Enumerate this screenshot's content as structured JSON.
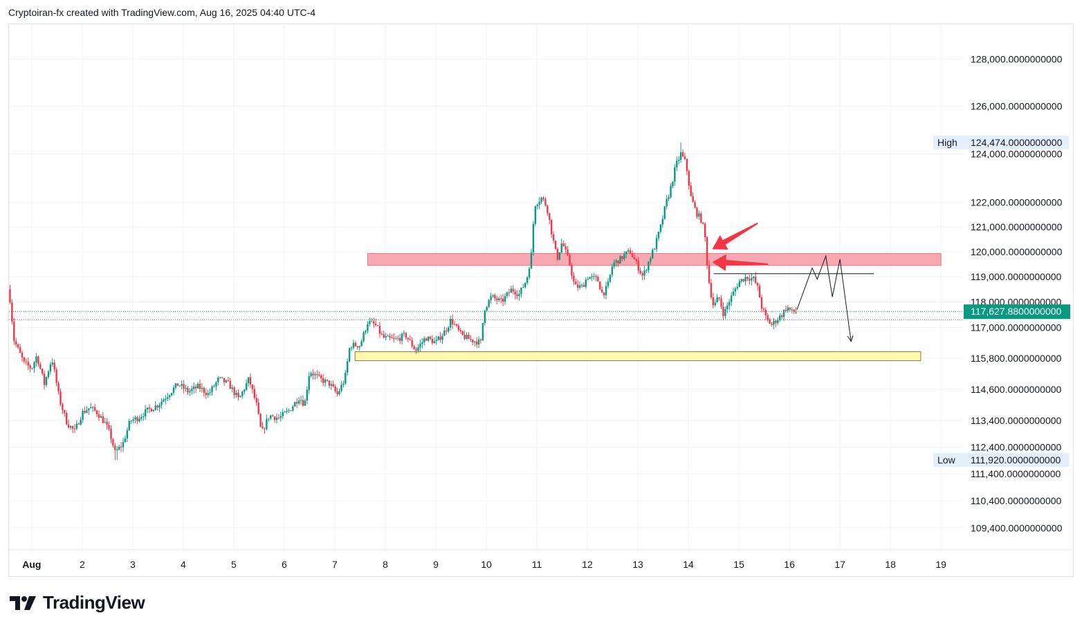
{
  "header": {
    "text": "Cryptoiran-fx created with TradingView.com, Aug 16, 2025 04:40 UTC-4"
  },
  "brand": {
    "name": "TradingView"
  },
  "colors": {
    "up": "#089981",
    "down": "#f23645",
    "resistance_zone": "#f7a8b0",
    "support_zone": "#fdf5b0",
    "current_price": "#089981"
  },
  "chart_data": {
    "type": "candlestick",
    "title": "",
    "y_scale": "log",
    "ylim": [
      108600,
      129500
    ],
    "xlim": [
      0.55,
      19.45
    ],
    "y_ticks": [
      {
        "value": 128000,
        "label": "128,000.0000000000"
      },
      {
        "value": 126000,
        "label": "126,000.0000000000"
      },
      {
        "value": 124000,
        "label": "124,000.0000000000"
      },
      {
        "value": 122000,
        "label": "122,000.0000000000"
      },
      {
        "value": 121000,
        "label": "121,000.0000000000"
      },
      {
        "value": 120000,
        "label": "120,000.0000000000"
      },
      {
        "value": 119000,
        "label": "119,000.0000000000"
      },
      {
        "value": 118000,
        "label": "118,000.0000000000"
      },
      {
        "value": 117000,
        "label": "117,000.0000000000"
      },
      {
        "value": 115800,
        "label": "115,800.0000000000"
      },
      {
        "value": 114600,
        "label": "114,600.0000000000"
      },
      {
        "value": 113400,
        "label": "113,400.0000000000"
      },
      {
        "value": 112400,
        "label": "112,400.0000000000"
      },
      {
        "value": 111400,
        "label": "111,400.0000000000"
      },
      {
        "value": 110400,
        "label": "110,400.0000000000"
      },
      {
        "value": 109400,
        "label": "109,400.0000000000"
      }
    ],
    "x_ticks": [
      {
        "value": 1,
        "label": "Aug"
      },
      {
        "value": 2,
        "label": "2"
      },
      {
        "value": 3,
        "label": "3"
      },
      {
        "value": 4,
        "label": "4"
      },
      {
        "value": 5,
        "label": "5"
      },
      {
        "value": 6,
        "label": "6"
      },
      {
        "value": 7,
        "label": "7"
      },
      {
        "value": 8,
        "label": "8"
      },
      {
        "value": 9,
        "label": "9"
      },
      {
        "value": 10,
        "label": "10"
      },
      {
        "value": 11,
        "label": "11"
      },
      {
        "value": 12,
        "label": "12"
      },
      {
        "value": 13,
        "label": "13"
      },
      {
        "value": 14,
        "label": "14"
      },
      {
        "value": 15,
        "label": "15"
      },
      {
        "value": 16,
        "label": "16"
      },
      {
        "value": 17,
        "label": "17"
      },
      {
        "value": 18,
        "label": "18"
      },
      {
        "value": 19,
        "label": "19"
      }
    ],
    "high_marker": {
      "label": "High",
      "value": 124474,
      "value_label": "124,474.0000000000"
    },
    "low_marker": {
      "label": "Low",
      "value": 111920,
      "value_label": "111,920.0000000000"
    },
    "current_price": {
      "value": 117627.88,
      "label": "117,627.8800000000"
    },
    "prev_close_value": 117300,
    "resistance_zone": {
      "x_start": 7.65,
      "x_end": 19.0,
      "y_low": 119450,
      "y_high": 119930
    },
    "support_zone": {
      "x_start": 7.4,
      "x_end": 18.6,
      "y_low": 115700,
      "y_high": 116050
    },
    "horizontal_line": {
      "x_start": 14.5,
      "x_end": 17.67,
      "value": 119120
    },
    "projection_path": [
      {
        "x": 16.15,
        "y": 117700
      },
      {
        "x": 16.45,
        "y": 119350
      },
      {
        "x": 16.55,
        "y": 118900
      },
      {
        "x": 16.72,
        "y": 119830
      },
      {
        "x": 16.85,
        "y": 118200
      },
      {
        "x": 17.0,
        "y": 119700
      },
      {
        "x": 17.22,
        "y": 116450
      }
    ],
    "arrows": [
      {
        "from_x": 15.37,
        "from_y": 121150,
        "to_x": 14.47,
        "to_y": 120100
      },
      {
        "from_x": 15.58,
        "from_y": 119500,
        "to_x": 14.47,
        "to_y": 119580
      }
    ],
    "price_path": [
      {
        "x": 0.55,
        "y": 118500
      },
      {
        "x": 0.65,
        "y": 116500
      },
      {
        "x": 0.85,
        "y": 115600
      },
      {
        "x": 1.0,
        "y": 115400
      },
      {
        "x": 1.1,
        "y": 115900
      },
      {
        "x": 1.25,
        "y": 114800
      },
      {
        "x": 1.4,
        "y": 115800
      },
      {
        "x": 1.55,
        "y": 114200
      },
      {
        "x": 1.7,
        "y": 113300
      },
      {
        "x": 1.85,
        "y": 113000
      },
      {
        "x": 2.0,
        "y": 113700
      },
      {
        "x": 2.15,
        "y": 113900
      },
      {
        "x": 2.3,
        "y": 113700
      },
      {
        "x": 2.45,
        "y": 113300
      },
      {
        "x": 2.55,
        "y": 112900
      },
      {
        "x": 2.65,
        "y": 112200
      },
      {
        "x": 2.8,
        "y": 112500
      },
      {
        "x": 2.95,
        "y": 113400
      },
      {
        "x": 3.1,
        "y": 113500
      },
      {
        "x": 3.3,
        "y": 113800
      },
      {
        "x": 3.5,
        "y": 114000
      },
      {
        "x": 3.7,
        "y": 114400
      },
      {
        "x": 3.9,
        "y": 114800
      },
      {
        "x": 4.1,
        "y": 114500
      },
      {
        "x": 4.3,
        "y": 114700
      },
      {
        "x": 4.5,
        "y": 114400
      },
      {
        "x": 4.7,
        "y": 115000
      },
      {
        "x": 4.9,
        "y": 114800
      },
      {
        "x": 5.1,
        "y": 114200
      },
      {
        "x": 5.3,
        "y": 115000
      },
      {
        "x": 5.45,
        "y": 114000
      },
      {
        "x": 5.55,
        "y": 112900
      },
      {
        "x": 5.7,
        "y": 113600
      },
      {
        "x": 5.9,
        "y": 113500
      },
      {
        "x": 6.1,
        "y": 113800
      },
      {
        "x": 6.3,
        "y": 114300
      },
      {
        "x": 6.4,
        "y": 114000
      },
      {
        "x": 6.5,
        "y": 115300
      },
      {
        "x": 6.7,
        "y": 115000
      },
      {
        "x": 6.9,
        "y": 114800
      },
      {
        "x": 7.05,
        "y": 114400
      },
      {
        "x": 7.2,
        "y": 115000
      },
      {
        "x": 7.3,
        "y": 116300
      },
      {
        "x": 7.5,
        "y": 116300
      },
      {
        "x": 7.65,
        "y": 117200
      },
      {
        "x": 7.8,
        "y": 117100
      },
      {
        "x": 7.95,
        "y": 116600
      },
      {
        "x": 8.2,
        "y": 116500
      },
      {
        "x": 8.4,
        "y": 116700
      },
      {
        "x": 8.6,
        "y": 116100
      },
      {
        "x": 8.8,
        "y": 116600
      },
      {
        "x": 9.0,
        "y": 116400
      },
      {
        "x": 9.2,
        "y": 116900
      },
      {
        "x": 9.3,
        "y": 117300
      },
      {
        "x": 9.5,
        "y": 116700
      },
      {
        "x": 9.7,
        "y": 116500
      },
      {
        "x": 9.9,
        "y": 116400
      },
      {
        "x": 9.95,
        "y": 117700
      },
      {
        "x": 10.1,
        "y": 118200
      },
      {
        "x": 10.3,
        "y": 118000
      },
      {
        "x": 10.5,
        "y": 118500
      },
      {
        "x": 10.65,
        "y": 118300
      },
      {
        "x": 10.8,
        "y": 118900
      },
      {
        "x": 10.9,
        "y": 120000
      },
      {
        "x": 10.95,
        "y": 121900
      },
      {
        "x": 11.1,
        "y": 122200
      },
      {
        "x": 11.2,
        "y": 121800
      },
      {
        "x": 11.3,
        "y": 120700
      },
      {
        "x": 11.4,
        "y": 119700
      },
      {
        "x": 11.5,
        "y": 120400
      },
      {
        "x": 11.65,
        "y": 119500
      },
      {
        "x": 11.75,
        "y": 118600
      },
      {
        "x": 11.9,
        "y": 118600
      },
      {
        "x": 12.0,
        "y": 119000
      },
      {
        "x": 12.2,
        "y": 118900
      },
      {
        "x": 12.3,
        "y": 118300
      },
      {
        "x": 12.4,
        "y": 118600
      },
      {
        "x": 12.5,
        "y": 119500
      },
      {
        "x": 12.65,
        "y": 119700
      },
      {
        "x": 12.75,
        "y": 119900
      },
      {
        "x": 12.85,
        "y": 120000
      },
      {
        "x": 13.0,
        "y": 119400
      },
      {
        "x": 13.1,
        "y": 119000
      },
      {
        "x": 13.25,
        "y": 119800
      },
      {
        "x": 13.35,
        "y": 120300
      },
      {
        "x": 13.45,
        "y": 121000
      },
      {
        "x": 13.55,
        "y": 121900
      },
      {
        "x": 13.65,
        "y": 122600
      },
      {
        "x": 13.75,
        "y": 123500
      },
      {
        "x": 13.85,
        "y": 124000
      },
      {
        "x": 13.95,
        "y": 123600
      },
      {
        "x": 14.05,
        "y": 122200
      },
      {
        "x": 14.15,
        "y": 121600
      },
      {
        "x": 14.25,
        "y": 121300
      },
      {
        "x": 14.32,
        "y": 120800
      },
      {
        "x": 14.38,
        "y": 119300
      },
      {
        "x": 14.42,
        "y": 118600
      },
      {
        "x": 14.5,
        "y": 117800
      },
      {
        "x": 14.6,
        "y": 118200
      },
      {
        "x": 14.7,
        "y": 117500
      },
      {
        "x": 14.8,
        "y": 118000
      },
      {
        "x": 14.9,
        "y": 118400
      },
      {
        "x": 15.0,
        "y": 118800
      },
      {
        "x": 15.15,
        "y": 119000
      },
      {
        "x": 15.3,
        "y": 118900
      },
      {
        "x": 15.38,
        "y": 118500
      },
      {
        "x": 15.45,
        "y": 117800
      },
      {
        "x": 15.55,
        "y": 117300
      },
      {
        "x": 15.65,
        "y": 117100
      },
      {
        "x": 15.75,
        "y": 117300
      },
      {
        "x": 15.85,
        "y": 117500
      },
      {
        "x": 15.95,
        "y": 117800
      },
      {
        "x": 16.05,
        "y": 117600
      },
      {
        "x": 16.15,
        "y": 117630
      }
    ]
  }
}
